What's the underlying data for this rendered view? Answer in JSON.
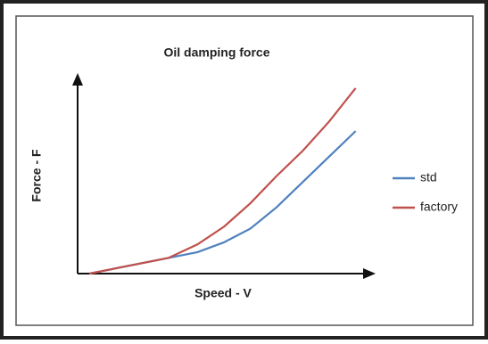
{
  "chart_data": {
    "type": "line",
    "title": "Oil damping force",
    "x_label": "Speed - V",
    "y_label": "Force - F",
    "x": [
      0.4,
      3.1,
      4.1,
      5.0,
      5.9,
      6.8,
      7.7,
      8.6,
      9.5
    ],
    "series": [
      {
        "name": "std",
        "color": "#4f81bd",
        "values": [
          0,
          0.8,
          1.1,
          1.6,
          2.3,
          3.4,
          4.7,
          6.0,
          7.3
        ]
      },
      {
        "name": "factory",
        "color": "#c0504d",
        "values": [
          0,
          0.8,
          1.5,
          2.4,
          3.6,
          5.0,
          6.3,
          7.8,
          9.5
        ]
      }
    ],
    "xlim": [
      0,
      10
    ],
    "ylim": [
      0,
      10
    ],
    "legend": "right"
  }
}
